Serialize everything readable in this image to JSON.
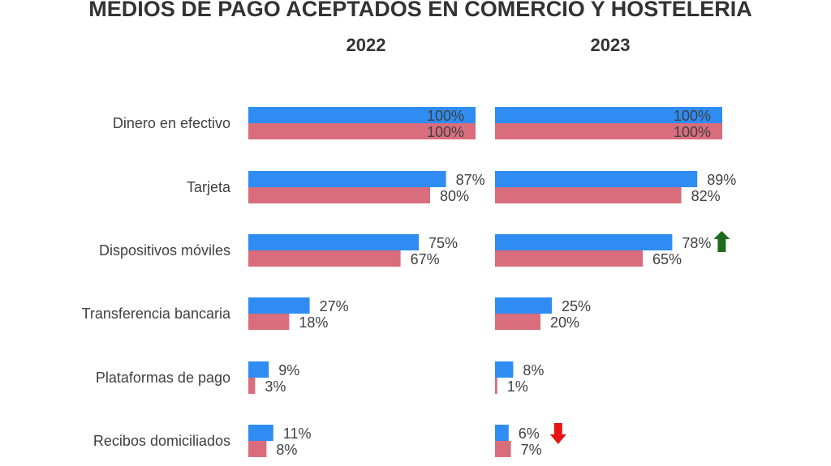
{
  "chart_data": {
    "type": "bar",
    "orientation": "horizontal",
    "title": "MEDIOS DE PAGO ACEPTADOS EN COMERCIO Y HOSTELERÍA",
    "categories": [
      "Dinero en efectivo",
      "Tarjeta",
      "Dispositivos móviles",
      "Transferencia bancaria",
      "Plataformas de pago",
      "Recibos domiciliados"
    ],
    "xlim": [
      0,
      100
    ],
    "grid": false,
    "legend": "none",
    "panels": [
      {
        "title": "2022",
        "series": [
          {
            "values": [
              100,
              87,
              75,
              27,
              9,
              11
            ],
            "labels": [
              "100%",
              "87%",
              "75%",
              "27%",
              "9%",
              "11%"
            ],
            "color": "#2f8cf2"
          },
          {
            "values": [
              100,
              80,
              67,
              18,
              3,
              8
            ],
            "labels": [
              "100%",
              "80%",
              "67%",
              "18%",
              "3%",
              "8%"
            ],
            "color": "#d96d7c"
          }
        ]
      },
      {
        "title": "2023",
        "series": [
          {
            "values": [
              100,
              89,
              78,
              25,
              8,
              6
            ],
            "labels": [
              "100%",
              "89%",
              "78%",
              "25%",
              "8%",
              "6%"
            ],
            "color": "#2f8cf2"
          },
          {
            "values": [
              100,
              82,
              65,
              20,
              1,
              7
            ],
            "labels": [
              "100%",
              "82%",
              "65%",
              "20%",
              "1%",
              "7%"
            ],
            "color": "#d96d7c"
          }
        ]
      }
    ],
    "highlight_colors": {
      "default": "#404040",
      "red": "#e8323c",
      "olive": "#9a8a2a"
    },
    "highlights": [
      {
        "panel": 1,
        "series": 1,
        "index": 1,
        "color": "red"
      },
      {
        "panel": 1,
        "series": 1,
        "index": 2,
        "color": "red"
      },
      {
        "panel": 1,
        "series": 0,
        "index": 4,
        "color": "olive"
      }
    ],
    "markers": [
      {
        "panel": 1,
        "series": 0,
        "index": 2,
        "icon": "arrow-up-icon",
        "color": "#1e6b1e"
      },
      {
        "panel": 1,
        "series": 0,
        "index": 5,
        "icon": "arrow-down-icon",
        "color": "#e81414"
      }
    ]
  }
}
